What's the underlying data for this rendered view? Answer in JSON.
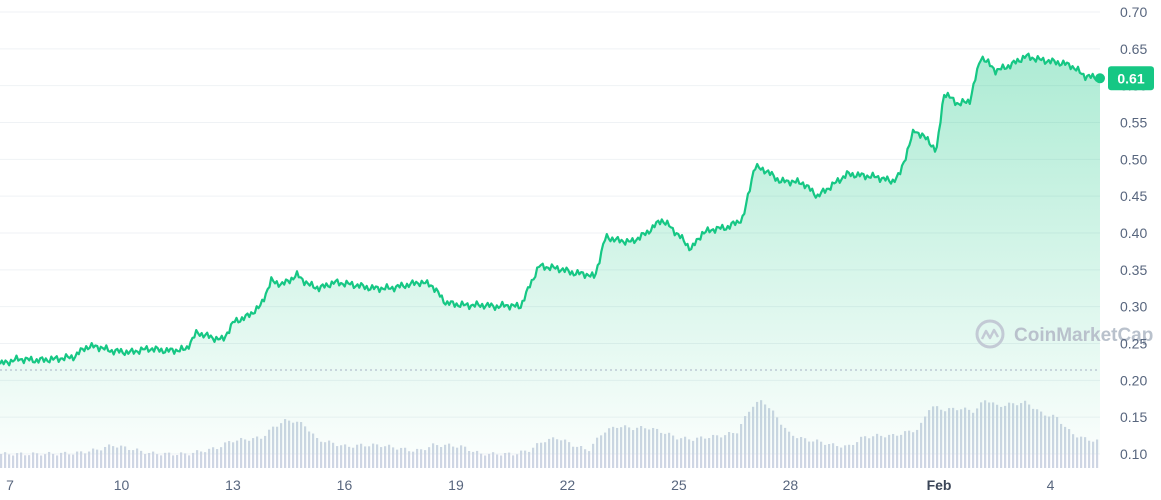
{
  "chart_data": {
    "type": "area",
    "y_ticks": [
      "0.70",
      "0.65",
      "0.60",
      "0.55",
      "0.50",
      "0.45",
      "0.40",
      "0.35",
      "0.30",
      "0.25",
      "0.20",
      "0.15",
      "0.10"
    ],
    "y_tick_values": [
      0.7,
      0.65,
      0.6,
      0.55,
      0.5,
      0.45,
      0.4,
      0.35,
      0.3,
      0.25,
      0.2,
      0.15,
      0.1
    ],
    "ylim": [
      0.1,
      0.7
    ],
    "x_ticks": [
      {
        "label": "7",
        "day": 7,
        "bold": false
      },
      {
        "label": "10",
        "day": 10,
        "bold": false
      },
      {
        "label": "13",
        "day": 13,
        "bold": false
      },
      {
        "label": "16",
        "day": 16,
        "bold": false
      },
      {
        "label": "19",
        "day": 19,
        "bold": false
      },
      {
        "label": "22",
        "day": 22,
        "bold": false
      },
      {
        "label": "25",
        "day": 25,
        "bold": false
      },
      {
        "label": "28",
        "day": 28,
        "bold": false
      },
      {
        "label": "Feb",
        "day": 32,
        "bold": true
      },
      {
        "label": "4",
        "day": 35,
        "bold": false
      }
    ],
    "xlim": [
      7,
      36.6
    ],
    "price_series": {
      "name": "",
      "x": [
        7.0,
        7.5,
        8.0,
        8.5,
        9.0,
        9.3,
        9.6,
        10.0,
        10.5,
        11.0,
        11.5,
        12.0,
        12.3,
        12.7,
        13.0,
        13.3,
        13.6,
        14.0,
        14.3,
        14.6,
        15.0,
        15.3,
        15.6,
        16.0,
        16.5,
        17.0,
        17.5,
        18.0,
        18.3,
        18.6,
        19.0,
        19.5,
        20.0,
        20.4,
        20.6,
        21.0,
        21.5,
        22.0,
        22.5,
        22.7,
        23.0,
        23.3,
        23.6,
        24.0,
        24.4,
        24.8,
        25.0,
        25.3,
        25.6,
        25.9,
        26.2,
        26.6,
        27.0,
        27.3,
        27.6,
        28.0,
        28.3,
        28.6,
        29.0,
        29.4,
        29.8,
        30.2,
        30.6,
        31.0,
        31.2,
        31.6,
        32.0,
        32.2,
        32.4,
        32.8,
        33.1,
        33.4,
        33.8,
        34.2,
        34.6,
        35.0,
        35.4,
        35.8,
        36.2,
        36.6
      ],
      "y": [
        0.222,
        0.229,
        0.227,
        0.229,
        0.232,
        0.245,
        0.246,
        0.24,
        0.238,
        0.243,
        0.24,
        0.242,
        0.265,
        0.258,
        0.255,
        0.28,
        0.285,
        0.3,
        0.335,
        0.33,
        0.343,
        0.33,
        0.325,
        0.333,
        0.33,
        0.325,
        0.325,
        0.33,
        0.333,
        0.33,
        0.305,
        0.302,
        0.302,
        0.3,
        0.302,
        0.3,
        0.355,
        0.352,
        0.345,
        0.345,
        0.34,
        0.395,
        0.39,
        0.388,
        0.4,
        0.418,
        0.41,
        0.395,
        0.378,
        0.4,
        0.405,
        0.408,
        0.42,
        0.49,
        0.485,
        0.47,
        0.47,
        0.468,
        0.45,
        0.465,
        0.48,
        0.478,
        0.476,
        0.47,
        0.478,
        0.54,
        0.525,
        0.51,
        0.59,
        0.575,
        0.58,
        0.64,
        0.62,
        0.628,
        0.64,
        0.635,
        0.632,
        0.628,
        0.613,
        0.61
      ]
    },
    "volume_series": {
      "name": "",
      "x": [
        7.0,
        8.0,
        9.0,
        9.6,
        10.0,
        10.5,
        11.0,
        11.5,
        12.0,
        12.4,
        12.8,
        13.2,
        13.6,
        14.0,
        14.3,
        14.6,
        14.9,
        15.2,
        15.5,
        15.9,
        16.3,
        16.7,
        17.2,
        17.7,
        18.0,
        18.3,
        18.6,
        19.0,
        19.4,
        19.9,
        20.4,
        20.8,
        21.2,
        21.6,
        22.0,
        22.4,
        22.8,
        23.2,
        23.6,
        24.0,
        24.4,
        24.8,
        25.2,
        25.6,
        26.0,
        26.4,
        26.8,
        27.2,
        27.5,
        27.8,
        28.2,
        28.6,
        29.0,
        29.4,
        29.8,
        30.2,
        30.6,
        31.0,
        31.4,
        31.7,
        32.0,
        32.4,
        32.8,
        33.2,
        33.5,
        33.8,
        34.2,
        34.6,
        35.0,
        35.4,
        35.8,
        36.2,
        36.6
      ],
      "y": [
        0.1,
        0.1,
        0.101,
        0.106,
        0.112,
        0.107,
        0.101,
        0.1,
        0.1,
        0.104,
        0.108,
        0.118,
        0.12,
        0.122,
        0.135,
        0.145,
        0.145,
        0.138,
        0.12,
        0.115,
        0.11,
        0.112,
        0.112,
        0.108,
        0.105,
        0.105,
        0.112,
        0.112,
        0.11,
        0.1,
        0.1,
        0.1,
        0.105,
        0.118,
        0.122,
        0.112,
        0.105,
        0.13,
        0.138,
        0.135,
        0.136,
        0.13,
        0.122,
        0.12,
        0.123,
        0.125,
        0.13,
        0.165,
        0.173,
        0.155,
        0.128,
        0.12,
        0.117,
        0.112,
        0.11,
        0.123,
        0.125,
        0.125,
        0.13,
        0.134,
        0.165,
        0.16,
        0.162,
        0.158,
        0.175,
        0.165,
        0.168,
        0.17,
        0.155,
        0.15,
        0.128,
        0.12,
        0.117
      ]
    },
    "current_price_label": "0.61",
    "current_price": 0.61,
    "watermark": "CoinMarketCap",
    "colors": {
      "line": "#16c784",
      "area_top": "#16c784",
      "volume": "#cfd6e4",
      "grid": "#eff2f5",
      "tick_text": "#58667e"
    }
  }
}
